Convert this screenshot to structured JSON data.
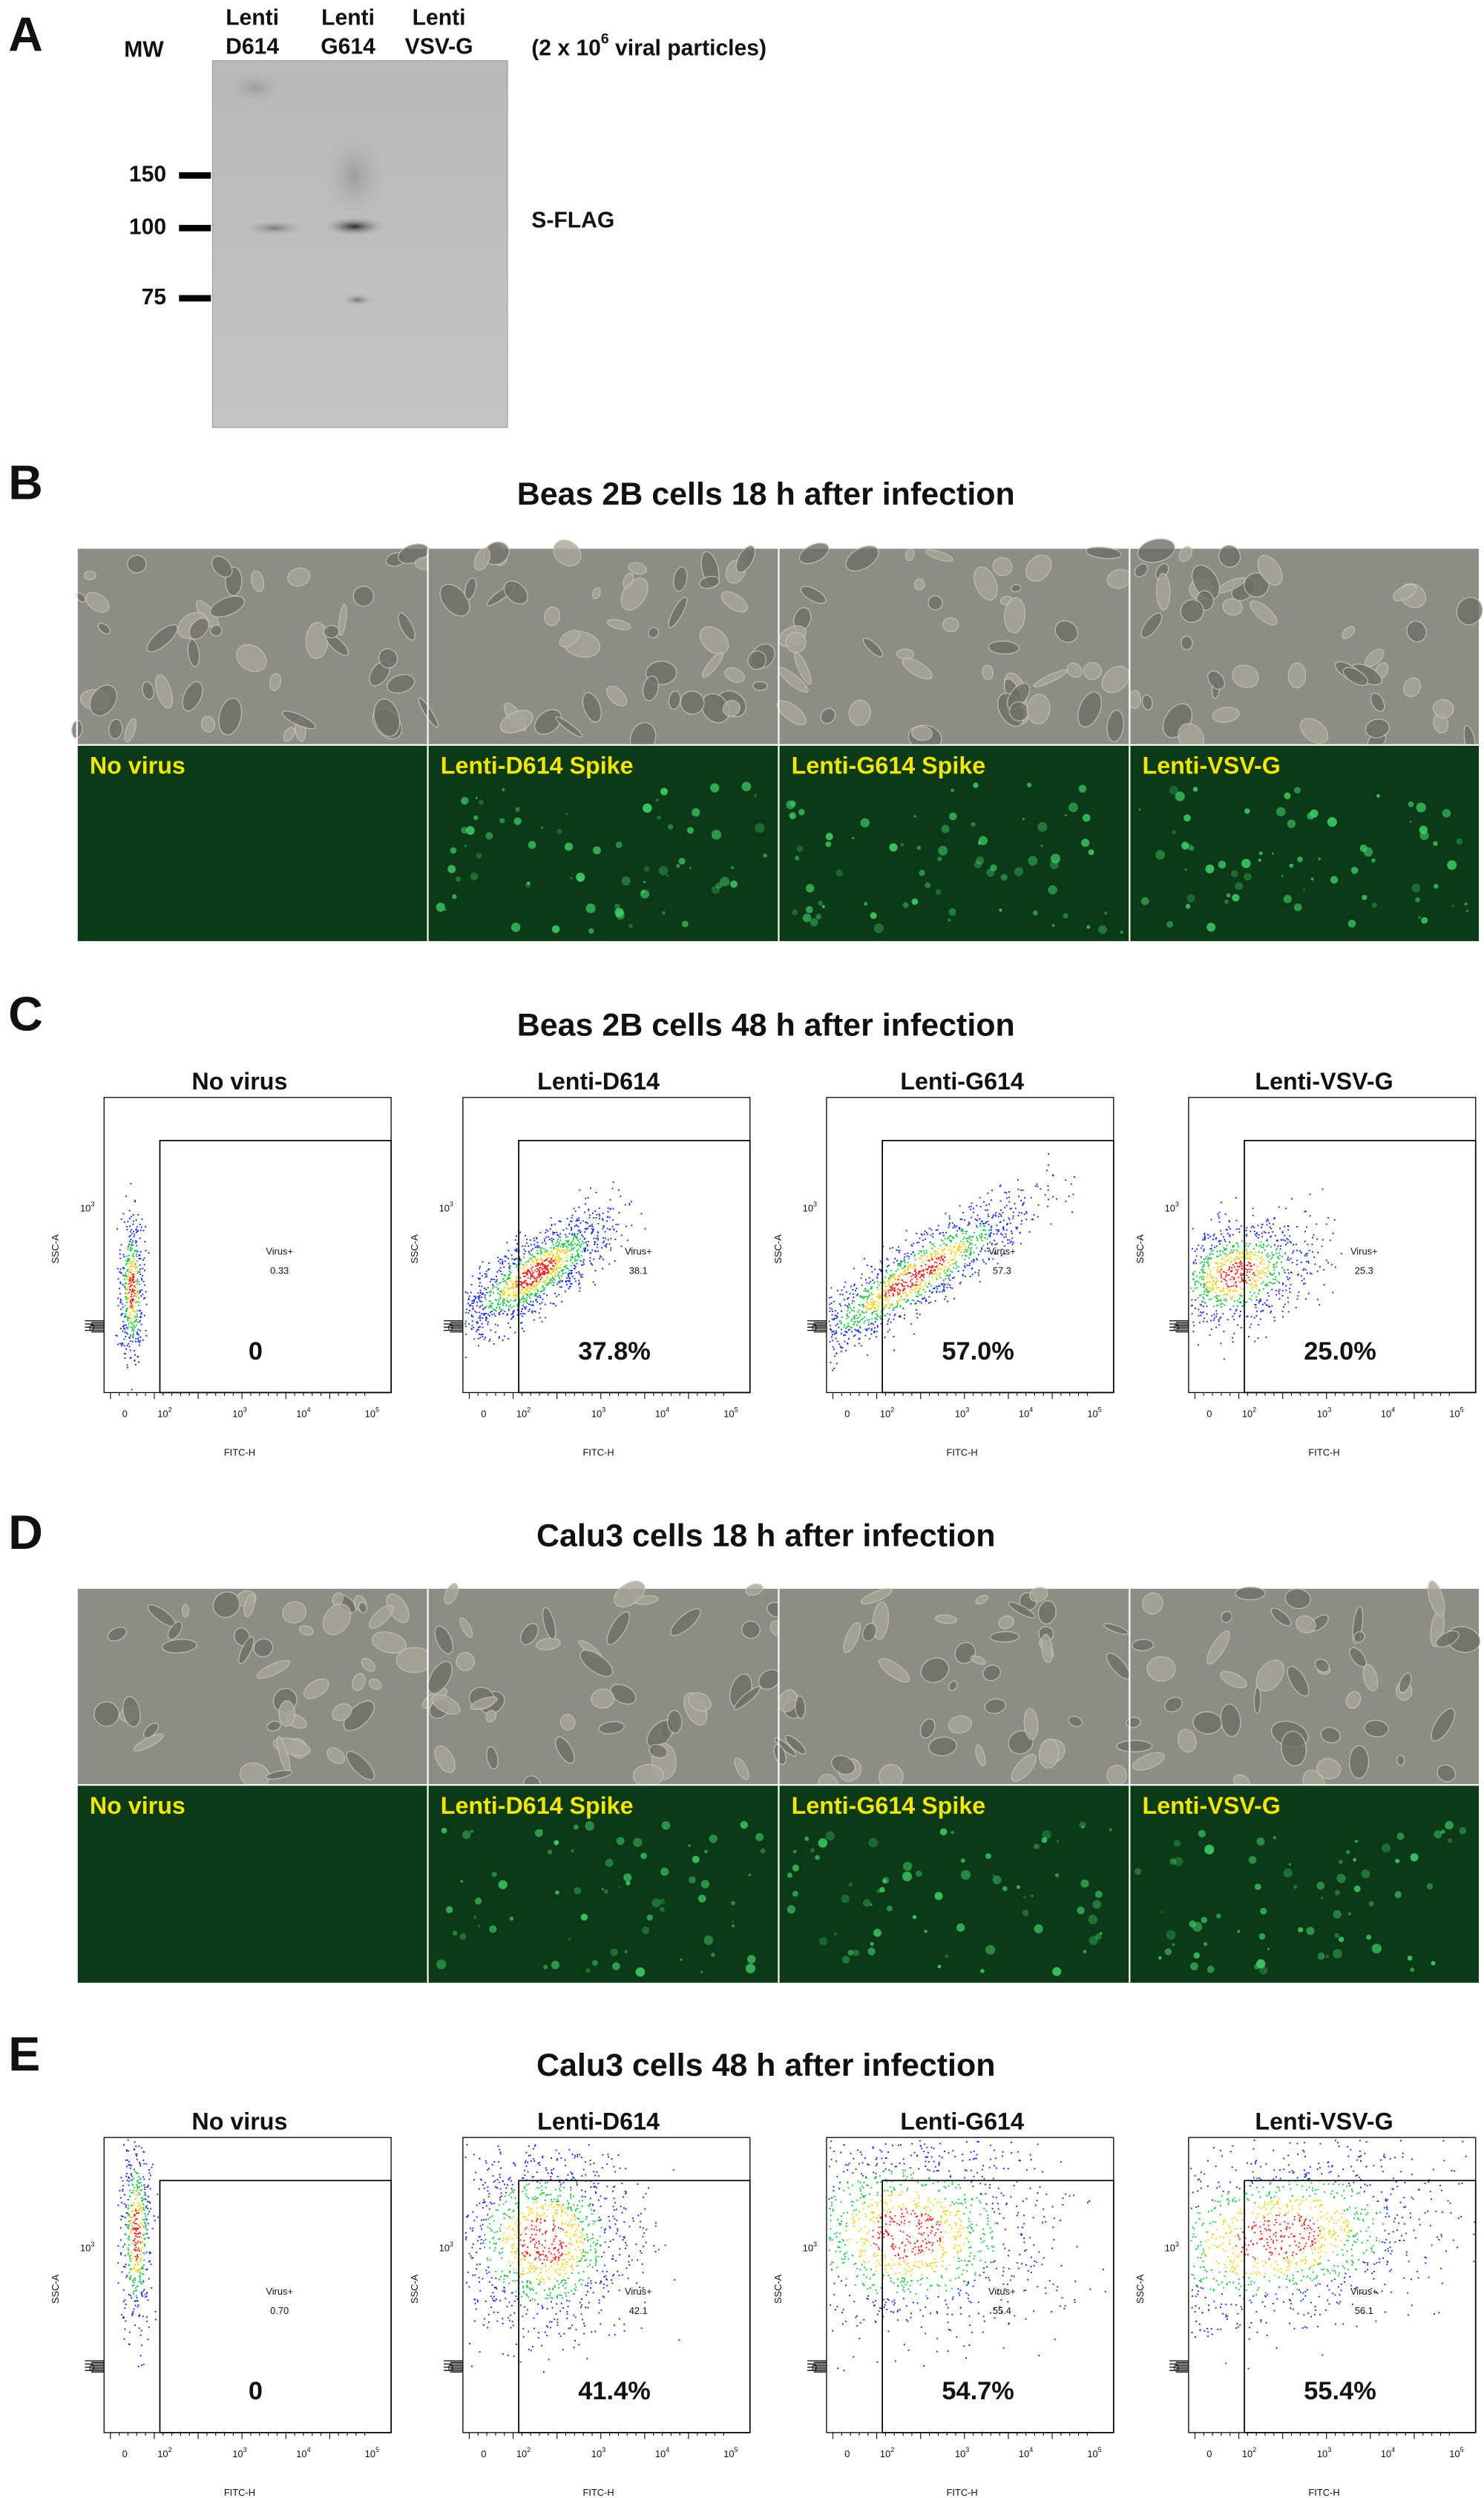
{
  "panel_a": {
    "letter": "A",
    "mw_label": "MW",
    "lanes": [
      [
        "Lenti",
        "D614"
      ],
      [
        "Lenti",
        "G614"
      ],
      [
        "Lenti",
        "VSV-G"
      ]
    ],
    "note": {
      "prefix": "(2 x 10",
      "sup": "6",
      "suffix": " viral particles)"
    },
    "markers": [
      "150",
      "100",
      "75"
    ],
    "band_label": "S-FLAG"
  },
  "panel_b": {
    "letter": "B",
    "title": "Beas 2B cells 18 h after infection",
    "labels": [
      "No virus",
      "Lenti-D614 Spike",
      "Lenti-G614 Spike",
      "Lenti-VSV-G"
    ]
  },
  "panel_c": {
    "letter": "C",
    "title": "Beas 2B cells 48 h after infection",
    "y_axis_label": "SSC-A",
    "x_axis_label": "FITC-H",
    "gate_label": "Virus+",
    "y_ticks": [
      {
        "base": "10",
        "exp": "3"
      },
      {
        "base": "0"
      }
    ],
    "x_ticks": [
      {
        "base": "0"
      },
      {
        "base": "10",
        "exp": "2"
      },
      {
        "base": "10",
        "exp": "3"
      },
      {
        "base": "10",
        "exp": "4"
      },
      {
        "base": "10",
        "exp": "5"
      }
    ],
    "plots": [
      {
        "title": "No virus",
        "gate_value": "0.33",
        "percent": "0"
      },
      {
        "title": "Lenti-D614",
        "gate_value": "38.1",
        "percent": "37.8%"
      },
      {
        "title": "Lenti-G614",
        "gate_value": "57.3",
        "percent": "57.0%"
      },
      {
        "title": "Lenti-VSV-G",
        "gate_value": "25.3",
        "percent": "25.0%"
      }
    ]
  },
  "panel_d": {
    "letter": "D",
    "title": "Calu3 cells 18 h after infection",
    "labels": [
      "No virus",
      "Lenti-D614 Spike",
      "Lenti-G614 Spike",
      "Lenti-VSV-G"
    ]
  },
  "panel_e": {
    "letter": "E",
    "title": "Calu3 cells 48 h after infection",
    "y_axis_label": "SSC-A",
    "x_axis_label": "FITC-H",
    "gate_label": "Virus+",
    "y_ticks": [
      {
        "base": "10",
        "exp": "3"
      },
      {
        "base": "0"
      }
    ],
    "x_ticks": [
      {
        "base": "0"
      },
      {
        "base": "10",
        "exp": "2"
      },
      {
        "base": "10",
        "exp": "3"
      },
      {
        "base": "10",
        "exp": "4"
      },
      {
        "base": "10",
        "exp": "5"
      }
    ],
    "plots": [
      {
        "title": "No virus",
        "gate_value": "0.70",
        "percent": "0"
      },
      {
        "title": "Lenti-D614",
        "gate_value": "42.1",
        "percent": "41.4%"
      },
      {
        "title": "Lenti-G614",
        "gate_value": "55.4",
        "percent": "54.7%"
      },
      {
        "title": "Lenti-VSV-G",
        "gate_value": "56.1",
        "percent": "55.4%"
      }
    ]
  }
}
